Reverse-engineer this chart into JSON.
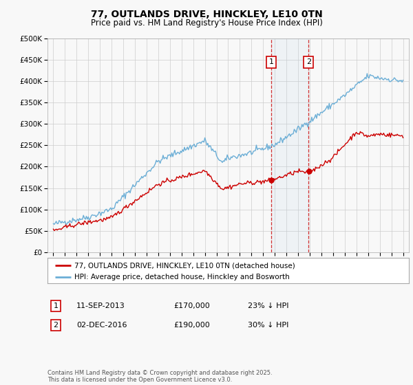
{
  "title": "77, OUTLANDS DRIVE, HINCKLEY, LE10 0TN",
  "subtitle": "Price paid vs. HM Land Registry's House Price Index (HPI)",
  "legend_entry1": "77, OUTLANDS DRIVE, HINCKLEY, LE10 0TN (detached house)",
  "legend_entry2": "HPI: Average price, detached house, Hinckley and Bosworth",
  "transaction1_date": "11-SEP-2013",
  "transaction1_price": "£170,000",
  "transaction1_hpi": "23% ↓ HPI",
  "transaction2_date": "02-DEC-2016",
  "transaction2_price": "£190,000",
  "transaction2_hpi": "30% ↓ HPI",
  "marker1_x": 2013.7,
  "marker2_x": 2016.9,
  "vline1_x": 2013.7,
  "vline2_x": 2016.9,
  "shade_x1": 2013.7,
  "shade_x2": 2016.9,
  "ylim_min": 0,
  "ylim_max": 500000,
  "xlim_min": 1994.5,
  "xlim_max": 2025.5,
  "hpi_color": "#6baed6",
  "price_color": "#cc0000",
  "background_color": "#f8f8f8",
  "grid_color": "#cccccc",
  "footnote": "Contains HM Land Registry data © Crown copyright and database right 2025.\nThis data is licensed under the Open Government Licence v3.0."
}
